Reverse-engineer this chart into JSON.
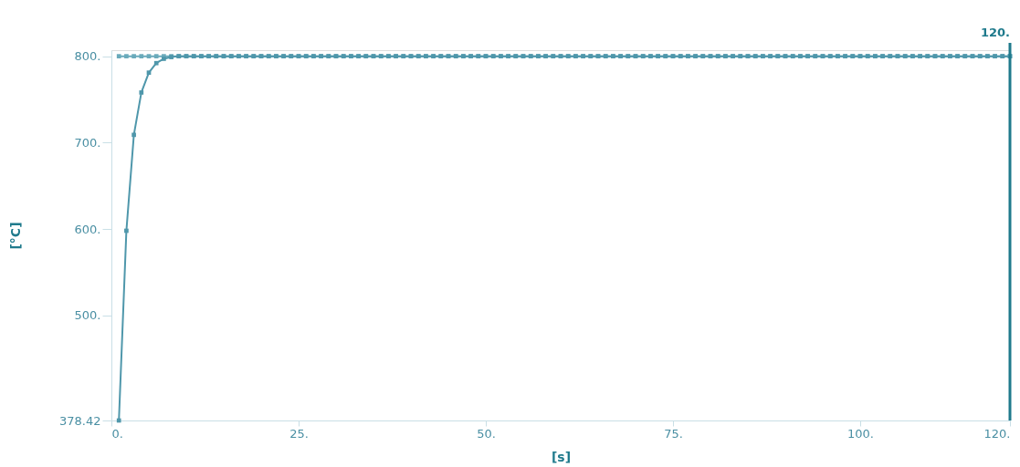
{
  "chart_data": {
    "type": "line",
    "xlabel": "[s]",
    "ylabel": "[°C]",
    "xlim": [
      0,
      120
    ],
    "ylim": [
      378.42,
      807
    ],
    "xticks": [
      {
        "value": 0,
        "label": "0."
      },
      {
        "value": 25,
        "label": "25."
      },
      {
        "value": 50,
        "label": "50."
      },
      {
        "value": 75,
        "label": "75."
      },
      {
        "value": 100,
        "label": "100."
      },
      {
        "value": 120,
        "label": "120."
      }
    ],
    "yticks": [
      {
        "value": 378.42,
        "label": "378.42"
      },
      {
        "value": 500,
        "label": "500."
      },
      {
        "value": 600,
        "label": "600."
      },
      {
        "value": 700,
        "label": "700."
      },
      {
        "value": 800,
        "label": "800."
      }
    ],
    "grid": false,
    "marker": "square",
    "ref_lines": [
      {
        "axis": "x",
        "value": 120,
        "label": "120.",
        "color": "#1f7a8c"
      }
    ],
    "series": [
      {
        "color": "#6aaabb",
        "x": [
          1,
          2,
          3,
          4,
          5,
          6,
          7,
          8,
          9,
          10,
          11,
          12,
          13,
          14,
          15,
          16,
          17,
          18,
          19,
          20,
          21,
          22,
          23,
          24,
          25,
          26,
          27,
          28,
          29,
          30,
          31,
          32,
          33,
          34,
          35,
          36,
          37,
          38,
          39,
          40,
          41,
          42,
          43,
          44,
          45,
          46,
          47,
          48,
          49,
          50,
          51,
          52,
          53,
          54,
          55,
          56,
          57,
          58,
          59,
          60,
          61,
          62,
          63,
          64,
          65,
          66,
          67,
          68,
          69,
          70,
          71,
          72,
          73,
          74,
          75,
          76,
          77,
          78,
          79,
          80,
          81,
          82,
          83,
          84,
          85,
          86,
          87,
          88,
          89,
          90,
          91,
          92,
          93,
          94,
          95,
          96,
          97,
          98,
          99,
          100,
          101,
          102,
          103,
          104,
          105,
          106,
          107,
          108,
          109,
          110,
          111,
          112,
          113,
          114,
          115,
          116,
          117,
          118,
          119,
          120
        ],
        "values": [
          800,
          800,
          800,
          800,
          800,
          800,
          800,
          800,
          800,
          800,
          800,
          800,
          800,
          800,
          800,
          800,
          800,
          800,
          800,
          800,
          800,
          800,
          800,
          800,
          800,
          800,
          800,
          800,
          800,
          800,
          800,
          800,
          800,
          800,
          800,
          800,
          800,
          800,
          800,
          800,
          800,
          800,
          800,
          800,
          800,
          800,
          800,
          800,
          800,
          800,
          800,
          800,
          800,
          800,
          800,
          800,
          800,
          800,
          800,
          800,
          800,
          800,
          800,
          800,
          800,
          800,
          800,
          800,
          800,
          800,
          800,
          800,
          800,
          800,
          800,
          800,
          800,
          800,
          800,
          800,
          800,
          800,
          800,
          800,
          800,
          800,
          800,
          800,
          800,
          800,
          800,
          800,
          800,
          800,
          800,
          800,
          800,
          800,
          800,
          800,
          800,
          800,
          800,
          800,
          800,
          800,
          800,
          800,
          800,
          800,
          800,
          800,
          800,
          800,
          800,
          800,
          800,
          800,
          800,
          800
        ]
      },
      {
        "color": "#4f97ab",
        "x": [
          1,
          2,
          3,
          4,
          5,
          6,
          7,
          8,
          9,
          10,
          11,
          12,
          13,
          14,
          15,
          16,
          17,
          18,
          19,
          20,
          21,
          22,
          23,
          24,
          25,
          26,
          27,
          28,
          29,
          30,
          31,
          32,
          33,
          34,
          35,
          36,
          37,
          38,
          39,
          40,
          41,
          42,
          43,
          44,
          45,
          46,
          47,
          48,
          49,
          50,
          51,
          52,
          53,
          54,
          55,
          56,
          57,
          58,
          59,
          60,
          61,
          62,
          63,
          64,
          65,
          66,
          67,
          68,
          69,
          70,
          71,
          72,
          73,
          74,
          75,
          76,
          77,
          78,
          79,
          80,
          81,
          82,
          83,
          84,
          85,
          86,
          87,
          88,
          89,
          90,
          91,
          92,
          93,
          94,
          95,
          96,
          97,
          98,
          99,
          100,
          101,
          102,
          103,
          104,
          105,
          106,
          107,
          108,
          109,
          110,
          111,
          112,
          113,
          114,
          115,
          116,
          117,
          118,
          119,
          120
        ],
        "values": [
          378.42,
          598,
          709,
          758,
          781,
          792,
          797,
          799,
          800,
          800,
          800,
          800,
          800,
          800,
          800,
          800,
          800,
          800,
          800,
          800,
          800,
          800,
          800,
          800,
          800,
          800,
          800,
          800,
          800,
          800,
          800,
          800,
          800,
          800,
          800,
          800,
          800,
          800,
          800,
          800,
          800,
          800,
          800,
          800,
          800,
          800,
          800,
          800,
          800,
          800,
          800,
          800,
          800,
          800,
          800,
          800,
          800,
          800,
          800,
          800,
          800,
          800,
          800,
          800,
          800,
          800,
          800,
          800,
          800,
          800,
          800,
          800,
          800,
          800,
          800,
          800,
          800,
          800,
          800,
          800,
          800,
          800,
          800,
          800,
          800,
          800,
          800,
          800,
          800,
          800,
          800,
          800,
          800,
          800,
          800,
          800,
          800,
          800,
          800,
          800,
          800,
          800,
          800,
          800,
          800,
          800,
          800,
          800,
          800,
          800,
          800,
          800,
          800,
          800,
          800,
          800,
          800,
          800,
          800,
          800
        ]
      }
    ]
  }
}
